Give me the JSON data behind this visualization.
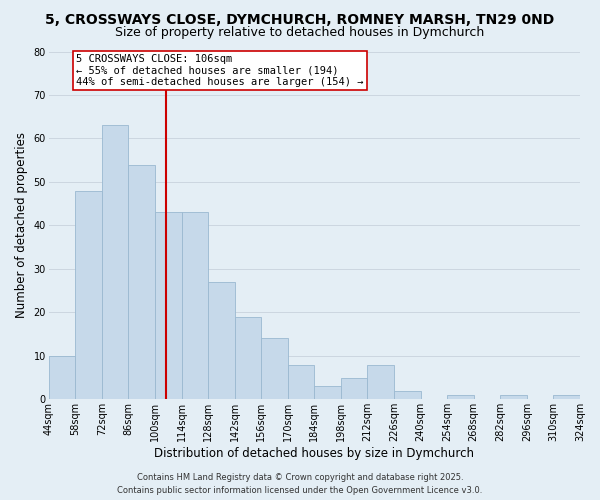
{
  "title_line1": "5, CROSSWAYS CLOSE, DYMCHURCH, ROMNEY MARSH, TN29 0ND",
  "title_line2": "Size of property relative to detached houses in Dymchurch",
  "xlabel": "Distribution of detached houses by size in Dymchurch",
  "ylabel": "Number of detached properties",
  "bin_edges": [
    44,
    58,
    72,
    86,
    100,
    114,
    128,
    142,
    156,
    170,
    184,
    198,
    212,
    226,
    240,
    254,
    268,
    282,
    296,
    310,
    324
  ],
  "bin_labels": [
    "44sqm",
    "58sqm",
    "72sqm",
    "86sqm",
    "100sqm",
    "114sqm",
    "128sqm",
    "142sqm",
    "156sqm",
    "170sqm",
    "184sqm",
    "198sqm",
    "212sqm",
    "226sqm",
    "240sqm",
    "254sqm",
    "268sqm",
    "282sqm",
    "296sqm",
    "310sqm",
    "324sqm"
  ],
  "values": [
    10,
    48,
    63,
    54,
    43,
    43,
    27,
    19,
    14,
    8,
    3,
    5,
    8,
    2,
    0,
    1,
    0,
    1,
    0,
    1
  ],
  "bar_color": "#c6d9ea",
  "bar_edge_color": "#9ab8d0",
  "vline_x_bin_index": 4,
  "vline_color": "#cc0000",
  "annotation_title": "5 CROSSWAYS CLOSE: 106sqm",
  "annotation_line2": "← 55% of detached houses are smaller (194)",
  "annotation_line3": "44% of semi-detached houses are larger (154) →",
  "annotation_box_facecolor": "#ffffff",
  "annotation_box_edgecolor": "#cc0000",
  "ylim": [
    0,
    80
  ],
  "yticks": [
    0,
    10,
    20,
    30,
    40,
    50,
    60,
    70,
    80
  ],
  "grid_color": "#ccd6e0",
  "background_color": "#e4eef5",
  "footer_line1": "Contains HM Land Registry data © Crown copyright and database right 2025.",
  "footer_line2": "Contains public sector information licensed under the Open Government Licence v3.0.",
  "title_fontsize": 10,
  "subtitle_fontsize": 9,
  "axis_label_fontsize": 8.5,
  "tick_label_fontsize": 7,
  "annotation_fontsize": 7.5,
  "footer_fontsize": 6
}
